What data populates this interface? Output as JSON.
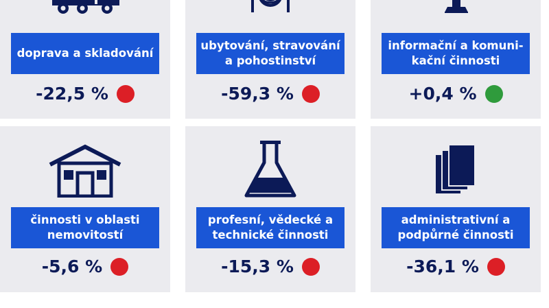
{
  "cards": [
    {
      "icon": "truck-icon",
      "label": "doprava a skladování",
      "value": "-22,5 %",
      "status_color": "#dc1f26"
    },
    {
      "icon": "plate-cutlery-icon",
      "label": "ubytování, stravování a pohostinství",
      "value": "-59,3 %",
      "status_color": "#dc1f26"
    },
    {
      "icon": "antenna-icon",
      "label": "informační a komuni-kační činnosti",
      "value": "+0,4 %",
      "status_color": "#2f9b3c"
    },
    {
      "icon": "house-icon",
      "label": "činnosti v oblasti nemovitostí",
      "value": "-5,6 %",
      "status_color": "#dc1f26"
    },
    {
      "icon": "flask-icon",
      "label": "profesní, vědecké a technické činnosti",
      "value": "-15,3 %",
      "status_color": "#dc1f26"
    },
    {
      "icon": "documents-icon",
      "label": "administrativní a podpůrné činnosti",
      "value": "-36,1 %",
      "status_color": "#dc1f26"
    }
  ],
  "colors": {
    "card_bg": "#ebebef",
    "label_bg": "#1a56d6",
    "value_text": "#0c1a57",
    "negative": "#dc1f26",
    "positive": "#2f9b3c"
  }
}
